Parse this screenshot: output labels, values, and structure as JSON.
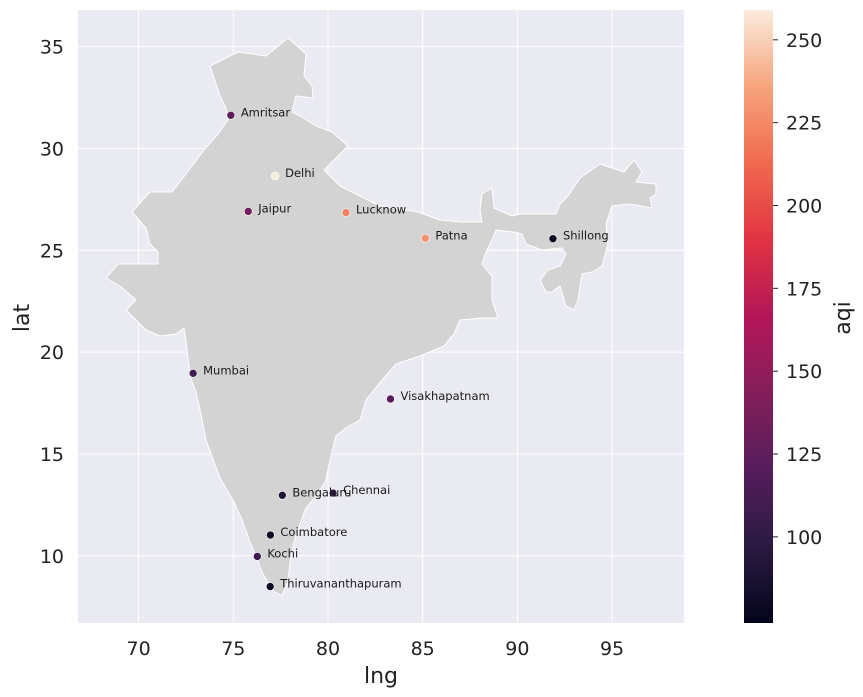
{
  "chart_data": {
    "type": "scatter",
    "title": "",
    "xlabel": "lng",
    "ylabel": "lat",
    "xlim": [
      66.8,
      98.8
    ],
    "ylim": [
      6.7,
      36.8
    ],
    "xticks": [
      70,
      75,
      80,
      85,
      90,
      95
    ],
    "yticks": [
      10,
      15,
      20,
      25,
      30,
      35
    ],
    "grid": true,
    "background": "#eaeaf2",
    "land_color": "#d3d3d3",
    "colorbar": {
      "label": "aqi",
      "min": 74,
      "max": 259,
      "ticks": [
        100,
        125,
        150,
        175,
        200,
        225,
        250
      ],
      "colormap": "rocket"
    },
    "points": [
      {
        "name": "Amritsar",
        "lng": 74.87,
        "lat": 31.63,
        "aqi": 125
      },
      {
        "name": "Delhi",
        "lng": 77.21,
        "lat": 28.65,
        "aqi": 259
      },
      {
        "name": "Jaipur",
        "lng": 75.79,
        "lat": 26.91,
        "aqi": 135
      },
      {
        "name": "Lucknow",
        "lng": 80.95,
        "lat": 26.85,
        "aqi": 222
      },
      {
        "name": "Patna",
        "lng": 85.14,
        "lat": 25.59,
        "aqi": 228
      },
      {
        "name": "Shillong",
        "lng": 91.88,
        "lat": 25.57,
        "aqi": 76
      },
      {
        "name": "Mumbai",
        "lng": 72.88,
        "lat": 18.96,
        "aqi": 110
      },
      {
        "name": "Visakhapatnam",
        "lng": 83.3,
        "lat": 17.7,
        "aqi": 120
      },
      {
        "name": "Bengaluru",
        "lng": 77.59,
        "lat": 12.97,
        "aqi": 92
      },
      {
        "name": "Chennai",
        "lng": 80.27,
        "lat": 13.08,
        "aqi": 98
      },
      {
        "name": "Coimbatore",
        "lng": 76.96,
        "lat": 11.02,
        "aqi": 82
      },
      {
        "name": "Kochi",
        "lng": 76.27,
        "lat": 9.97,
        "aqi": 108
      },
      {
        "name": "Thiruvananthapuram",
        "lng": 76.95,
        "lat": 8.49,
        "aqi": 80
      }
    ]
  }
}
